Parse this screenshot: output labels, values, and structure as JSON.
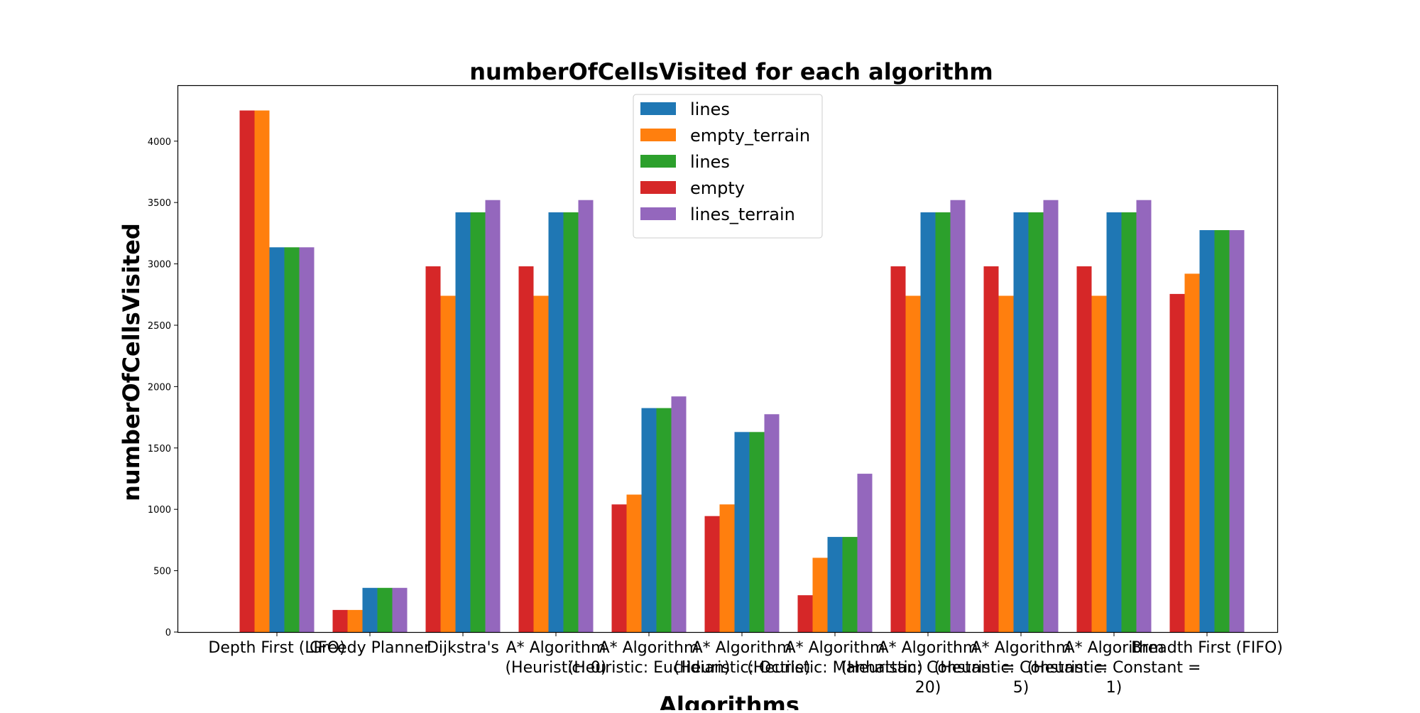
{
  "chart_data": {
    "type": "bar",
    "title": "numberOfCellsVisited for each algorithm",
    "xlabel": "Algorithms",
    "ylabel": "numberOfCellsVisited",
    "ylim": [
      0,
      4450
    ],
    "yticks": [
      0,
      500,
      1000,
      1500,
      2000,
      2500,
      3000,
      3500,
      4000
    ],
    "grid": false,
    "legend_position": "top-center",
    "categories": [
      [
        "Depth First (LIFO)"
      ],
      [
        "Greedy Planner"
      ],
      [
        "Dijkstra's"
      ],
      [
        "A* Algorithm",
        "(Heuristic: 0)"
      ],
      [
        "A* Algorithm",
        "(Heuristic: Euclidian)"
      ],
      [
        "A* Algorithm",
        "(Heuristic: Octile)"
      ],
      [
        "A* Algorithm",
        "(Heuristic: Manhattan)"
      ],
      [
        "A* Algorithm",
        "(Heuristic: Constant =",
        "20)"
      ],
      [
        "A* Algorithm",
        "(Heuristic: Constant =",
        "5)"
      ],
      [
        "A* Algorithm",
        "(Heuristic: Constant =",
        "1)"
      ],
      [
        "Breadth First (FIFO)"
      ]
    ],
    "series": [
      {
        "name": "empty",
        "color": "#d62728",
        "values": [
          4250,
          180,
          2980,
          2980,
          1040,
          945,
          300,
          2980,
          2980,
          2980,
          2755
        ]
      },
      {
        "name": "empty_terrain",
        "color": "#ff7f0e",
        "values": [
          4250,
          180,
          2740,
          2740,
          1120,
          1040,
          605,
          2740,
          2740,
          2740,
          2920
        ]
      },
      {
        "name": "lines",
        "color": "#1f77b4",
        "values": [
          3135,
          360,
          3420,
          3420,
          1825,
          1630,
          775,
          3420,
          3420,
          3420,
          3275
        ]
      },
      {
        "name": "lines",
        "color": "#2ca02c",
        "values": [
          3135,
          360,
          3420,
          3420,
          1825,
          1630,
          775,
          3420,
          3420,
          3420,
          3275
        ]
      },
      {
        "name": "lines_terrain",
        "color": "#9467bd",
        "values": [
          3135,
          360,
          3520,
          3520,
          1920,
          1775,
          1290,
          3520,
          3520,
          3520,
          3275
        ]
      }
    ],
    "legend_order": [
      2,
      1,
      3,
      0,
      4
    ]
  }
}
